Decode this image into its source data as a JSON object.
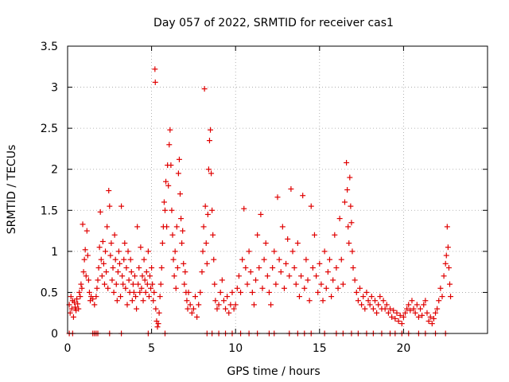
{
  "chart_data": {
    "type": "scatter",
    "title": "Day 057 of 2022, SRMTID for receiver cas1",
    "xlabel": "GPS time / hours",
    "ylabel": "SRMTID / TECUs",
    "xlim": [
      0,
      25
    ],
    "ylim": [
      0,
      3.5
    ],
    "xticks": [
      0,
      5,
      10,
      15,
      20
    ],
    "xtick_labels": [
      "0",
      "5",
      "10",
      "15",
      "20"
    ],
    "yticks": [
      0,
      0.5,
      1,
      1.5,
      2,
      2.5,
      3,
      3.5
    ],
    "ytick_labels": [
      "0",
      "0.5",
      "1",
      "1.5",
      "2",
      "2.5",
      "3",
      "3.5"
    ],
    "grid": true,
    "marker": "+",
    "color": "#e00000",
    "series": [
      {
        "name": "cas1",
        "points": [
          [
            0.1,
            0.35
          ],
          [
            0.15,
            0.25
          ],
          [
            0.2,
            0.45
          ],
          [
            0.25,
            0.3
          ],
          [
            0.3,
            0.4
          ],
          [
            0.35,
            0.2
          ],
          [
            0.4,
            0.38
          ],
          [
            0.45,
            0.32
          ],
          [
            0.5,
            0.28
          ],
          [
            0.55,
            0.42
          ],
          [
            0.6,
            0.36
          ],
          [
            0.65,
            0.3
          ],
          [
            0.7,
            0.5
          ],
          [
            0.75,
            0.45
          ],
          [
            0.8,
            0.6
          ],
          [
            0.85,
            0.55
          ],
          [
            0.9,
            1.33
          ],
          [
            0.95,
            0.75
          ],
          [
            1.0,
            0.9
          ],
          [
            1.05,
            1.02
          ],
          [
            1.1,
            0.7
          ],
          [
            1.15,
            1.25
          ],
          [
            1.2,
            0.95
          ],
          [
            1.25,
            0.65
          ],
          [
            1.3,
            0.5
          ],
          [
            1.35,
            0.4
          ],
          [
            1.4,
            0.45
          ],
          [
            1.5,
            0.42
          ],
          [
            1.6,
            0.35
          ],
          [
            1.7,
            0.45
          ],
          [
            1.75,
            0.55
          ],
          [
            1.8,
            0.65
          ],
          [
            1.85,
            0.8
          ],
          [
            1.9,
            1.05
          ],
          [
            1.95,
            1.48
          ],
          [
            2.0,
            0.9
          ],
          [
            2.05,
            0.7
          ],
          [
            2.1,
            1.12
          ],
          [
            2.15,
            0.85
          ],
          [
            2.2,
            0.6
          ],
          [
            2.25,
            1.0
          ],
          [
            2.3,
            0.75
          ],
          [
            2.35,
            1.3
          ],
          [
            2.4,
            0.55
          ],
          [
            2.45,
            1.74
          ],
          [
            2.5,
            1.55
          ],
          [
            2.55,
            0.95
          ],
          [
            2.6,
            1.1
          ],
          [
            2.65,
            0.65
          ],
          [
            2.7,
            0.8
          ],
          [
            2.75,
            0.5
          ],
          [
            2.8,
            1.2
          ],
          [
            2.85,
            0.9
          ],
          [
            2.9,
            0.6
          ],
          [
            2.95,
            0.4
          ],
          [
            3.0,
            0.75
          ],
          [
            3.05,
            1.0
          ],
          [
            3.1,
            0.85
          ],
          [
            3.15,
            0.45
          ],
          [
            3.2,
            1.55
          ],
          [
            3.25,
            0.7
          ],
          [
            3.3,
            0.6
          ],
          [
            3.35,
            0.9
          ],
          [
            3.4,
            1.1
          ],
          [
            3.45,
            0.55
          ],
          [
            3.5,
            0.8
          ],
          [
            3.55,
            0.35
          ],
          [
            3.6,
            1.0
          ],
          [
            3.65,
            0.65
          ],
          [
            3.7,
            0.5
          ],
          [
            3.75,
            0.9
          ],
          [
            3.8,
            0.75
          ],
          [
            3.85,
            0.4
          ],
          [
            3.9,
            0.6
          ],
          [
            3.95,
            0.5
          ],
          [
            4.0,
            0.7
          ],
          [
            4.05,
            0.45
          ],
          [
            4.1,
            0.3
          ],
          [
            4.15,
            1.3
          ],
          [
            4.2,
            0.6
          ],
          [
            4.25,
            0.8
          ],
          [
            4.3,
            0.5
          ],
          [
            4.35,
            1.05
          ],
          [
            4.4,
            0.55
          ],
          [
            4.45,
            0.7
          ],
          [
            4.5,
            0.4
          ],
          [
            4.55,
            0.9
          ],
          [
            4.6,
            0.65
          ],
          [
            4.65,
            0.5
          ],
          [
            4.7,
            0.75
          ],
          [
            4.75,
            0.6
          ],
          [
            4.8,
            1.0
          ],
          [
            4.85,
            0.45
          ],
          [
            4.9,
            0.7
          ],
          [
            4.95,
            0.55
          ],
          [
            5.0,
            0.8
          ],
          [
            5.05,
            0.6
          ],
          [
            5.1,
            0.4
          ],
          [
            5.15,
            0.5
          ],
          [
            5.2,
            3.22
          ],
          [
            5.22,
            3.06
          ],
          [
            5.25,
            0.3
          ],
          [
            5.3,
            0.15
          ],
          [
            5.35,
            0.08
          ],
          [
            5.4,
            0.12
          ],
          [
            5.45,
            0.25
          ],
          [
            5.5,
            0.45
          ],
          [
            5.55,
            0.6
          ],
          [
            5.6,
            0.8
          ],
          [
            5.65,
            1.1
          ],
          [
            5.7,
            1.3
          ],
          [
            5.75,
            1.6
          ],
          [
            5.8,
            1.5
          ],
          [
            5.85,
            1.85
          ],
          [
            5.9,
            1.3
          ],
          [
            5.95,
            2.05
          ],
          [
            6.0,
            1.8
          ],
          [
            6.05,
            2.3
          ],
          [
            6.1,
            2.48
          ],
          [
            6.15,
            2.05
          ],
          [
            6.2,
            1.5
          ],
          [
            6.25,
            1.2
          ],
          [
            6.3,
            0.9
          ],
          [
            6.35,
            0.7
          ],
          [
            6.4,
            1.0
          ],
          [
            6.45,
            0.55
          ],
          [
            6.5,
            1.3
          ],
          [
            6.55,
            0.8
          ],
          [
            6.6,
            1.95
          ],
          [
            6.65,
            2.12
          ],
          [
            6.7,
            1.7
          ],
          [
            6.75,
            1.4
          ],
          [
            6.8,
            1.1
          ],
          [
            6.85,
            1.25
          ],
          [
            6.9,
            0.85
          ],
          [
            6.95,
            0.6
          ],
          [
            7.0,
            0.75
          ],
          [
            7.05,
            0.5
          ],
          [
            7.1,
            0.4
          ],
          [
            7.15,
            0.3
          ],
          [
            7.2,
            0.5
          ],
          [
            7.3,
            0.35
          ],
          [
            7.4,
            0.25
          ],
          [
            7.5,
            0.3
          ],
          [
            7.6,
            0.45
          ],
          [
            7.7,
            0.2
          ],
          [
            7.8,
            0.35
          ],
          [
            7.9,
            0.5
          ],
          [
            8.0,
            0.75
          ],
          [
            8.05,
            1.0
          ],
          [
            8.1,
            1.3
          ],
          [
            8.15,
            2.98
          ],
          [
            8.2,
            1.55
          ],
          [
            8.25,
            1.1
          ],
          [
            8.3,
            0.85
          ],
          [
            8.35,
            1.45
          ],
          [
            8.4,
            2.0
          ],
          [
            8.45,
            2.35
          ],
          [
            8.5,
            2.48
          ],
          [
            8.55,
            1.95
          ],
          [
            8.6,
            1.5
          ],
          [
            8.65,
            1.2
          ],
          [
            8.7,
            0.9
          ],
          [
            8.75,
            0.6
          ],
          [
            8.8,
            0.4
          ],
          [
            8.9,
            0.3
          ],
          [
            9.0,
            0.35
          ],
          [
            9.1,
            0.5
          ],
          [
            9.2,
            0.65
          ],
          [
            9.3,
            0.4
          ],
          [
            9.4,
            0.3
          ],
          [
            9.5,
            0.45
          ],
          [
            9.6,
            0.25
          ],
          [
            9.7,
            0.35
          ],
          [
            9.8,
            0.5
          ],
          [
            9.9,
            0.3
          ],
          [
            10.0,
            0.35
          ],
          [
            10.1,
            0.55
          ],
          [
            10.2,
            0.7
          ],
          [
            10.3,
            0.5
          ],
          [
            10.4,
            0.9
          ],
          [
            10.5,
            1.52
          ],
          [
            10.6,
            0.8
          ],
          [
            10.7,
            0.6
          ],
          [
            10.8,
            1.0
          ],
          [
            10.9,
            0.75
          ],
          [
            11.0,
            0.5
          ],
          [
            11.1,
            0.35
          ],
          [
            11.2,
            0.65
          ],
          [
            11.3,
            1.2
          ],
          [
            11.4,
            0.8
          ],
          [
            11.5,
            1.45
          ],
          [
            11.6,
            0.55
          ],
          [
            11.7,
            0.9
          ],
          [
            11.8,
            1.1
          ],
          [
            11.9,
            0.7
          ],
          [
            12.0,
            0.5
          ],
          [
            12.1,
            0.35
          ],
          [
            12.2,
            0.8
          ],
          [
            12.3,
            1.0
          ],
          [
            12.4,
            0.6
          ],
          [
            12.5,
            1.66
          ],
          [
            12.6,
            0.9
          ],
          [
            12.7,
            0.75
          ],
          [
            12.8,
            1.3
          ],
          [
            12.9,
            0.55
          ],
          [
            13.0,
            0.85
          ],
          [
            13.1,
            1.15
          ],
          [
            13.2,
            0.7
          ],
          [
            13.3,
            1.76
          ],
          [
            13.4,
            1.0
          ],
          [
            13.5,
            0.8
          ],
          [
            13.6,
            0.6
          ],
          [
            13.7,
            1.1
          ],
          [
            13.8,
            0.45
          ],
          [
            13.9,
            0.7
          ],
          [
            14.0,
            1.68
          ],
          [
            14.1,
            0.55
          ],
          [
            14.2,
            0.9
          ],
          [
            14.3,
            0.65
          ],
          [
            14.4,
            0.4
          ],
          [
            14.5,
            1.55
          ],
          [
            14.6,
            0.8
          ],
          [
            14.7,
            1.2
          ],
          [
            14.8,
            0.7
          ],
          [
            14.9,
            0.5
          ],
          [
            15.0,
            0.85
          ],
          [
            15.1,
            0.6
          ],
          [
            15.2,
            0.4
          ],
          [
            15.3,
            1.0
          ],
          [
            15.4,
            0.55
          ],
          [
            15.5,
            0.75
          ],
          [
            15.6,
            0.9
          ],
          [
            15.7,
            0.45
          ],
          [
            15.8,
            0.65
          ],
          [
            15.9,
            1.2
          ],
          [
            16.0,
            0.8
          ],
          [
            16.1,
            0.55
          ],
          [
            16.2,
            1.4
          ],
          [
            16.3,
            0.9
          ],
          [
            16.4,
            0.6
          ],
          [
            16.5,
            1.6
          ],
          [
            16.6,
            2.08
          ],
          [
            16.65,
            1.75
          ],
          [
            16.7,
            1.3
          ],
          [
            16.75,
            1.1
          ],
          [
            16.8,
            1.9
          ],
          [
            16.85,
            1.55
          ],
          [
            16.9,
            1.35
          ],
          [
            16.95,
            1.0
          ],
          [
            17.0,
            0.8
          ],
          [
            17.1,
            0.65
          ],
          [
            17.2,
            0.5
          ],
          [
            17.3,
            0.4
          ],
          [
            17.4,
            0.55
          ],
          [
            17.5,
            0.35
          ],
          [
            17.6,
            0.45
          ],
          [
            17.7,
            0.3
          ],
          [
            17.8,
            0.5
          ],
          [
            17.9,
            0.4
          ],
          [
            18.0,
            0.35
          ],
          [
            18.1,
            0.45
          ],
          [
            18.2,
            0.3
          ],
          [
            18.3,
            0.4
          ],
          [
            18.4,
            0.25
          ],
          [
            18.5,
            0.35
          ],
          [
            18.6,
            0.45
          ],
          [
            18.7,
            0.3
          ],
          [
            18.8,
            0.4
          ],
          [
            18.9,
            0.3
          ],
          [
            19.0,
            0.35
          ],
          [
            19.1,
            0.25
          ],
          [
            19.2,
            0.3
          ],
          [
            19.3,
            0.2
          ],
          [
            19.4,
            0.28
          ],
          [
            19.5,
            0.18
          ],
          [
            19.6,
            0.25
          ],
          [
            19.7,
            0.15
          ],
          [
            19.8,
            0.22
          ],
          [
            19.9,
            0.12
          ],
          [
            20.0,
            0.2
          ],
          [
            20.1,
            0.25
          ],
          [
            20.2,
            0.3
          ],
          [
            20.3,
            0.35
          ],
          [
            20.4,
            0.28
          ],
          [
            20.5,
            0.4
          ],
          [
            20.6,
            0.3
          ],
          [
            20.7,
            0.25
          ],
          [
            20.8,
            0.35
          ],
          [
            20.9,
            0.2
          ],
          [
            21.0,
            0.3
          ],
          [
            21.1,
            0.22
          ],
          [
            21.2,
            0.35
          ],
          [
            21.3,
            0.4
          ],
          [
            21.4,
            0.25
          ],
          [
            21.5,
            0.15
          ],
          [
            21.6,
            0.2
          ],
          [
            21.7,
            0.12
          ],
          [
            21.8,
            0.18
          ],
          [
            21.9,
            0.25
          ],
          [
            22.0,
            0.3
          ],
          [
            22.1,
            0.4
          ],
          [
            22.2,
            0.55
          ],
          [
            22.3,
            0.45
          ],
          [
            22.4,
            0.7
          ],
          [
            22.5,
            0.85
          ],
          [
            22.55,
            0.95
          ],
          [
            22.6,
            1.3
          ],
          [
            22.65,
            1.05
          ],
          [
            22.7,
            0.8
          ],
          [
            22.75,
            0.6
          ],
          [
            22.8,
            0.45
          ]
        ]
      }
    ],
    "zero_markers_x": [
      0.1,
      0.3,
      1.5,
      1.6,
      1.7,
      1.8,
      2.5,
      3.2,
      4.8,
      5.8,
      8.3,
      8.6,
      9.0,
      9.4,
      9.8,
      10.3,
      10.8,
      11.3,
      12.0,
      12.3,
      13.2,
      13.7,
      14.1,
      14.5,
      15.3,
      16.0,
      16.4,
      16.9,
      17.3,
      17.8,
      18.2,
      18.7,
      19.2,
      19.5,
      19.9,
      20.3,
      20.9,
      21.3,
      21.9,
      22.5
    ]
  }
}
